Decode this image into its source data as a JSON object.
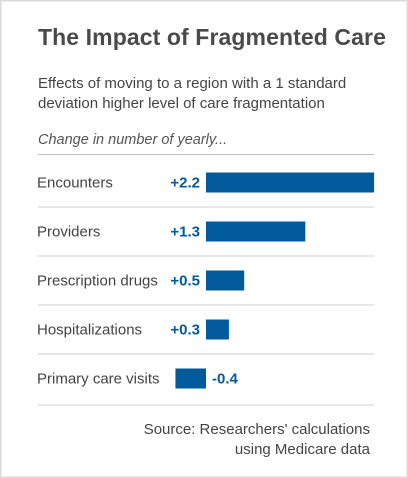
{
  "title": "The Impact of Fragmented Care",
  "subtitle": "Effects of moving to a region with a 1 standard deviation higher level of care fragmentation",
  "axis_caption": "Change in number of yearly...",
  "source_line1": "Source: Researchers' calculations",
  "source_line2": "using Medicare data",
  "colors": {
    "bar": "#005a9c",
    "label": "#005a9c",
    "category": "#444444",
    "divider": "#cfcfcf"
  },
  "chart_data": {
    "type": "bar",
    "orientation": "horizontal",
    "categories": [
      "Encounters",
      "Providers",
      "Prescription drugs",
      "Hospitalizations",
      "Primary care visits"
    ],
    "values": [
      2.2,
      1.3,
      0.5,
      0.3,
      -0.4
    ],
    "value_labels": [
      "+2.2",
      "+1.3",
      "+0.5",
      "+0.3",
      "-0.4"
    ],
    "xlim": [
      -0.4,
      2.2
    ],
    "grid": false
  }
}
